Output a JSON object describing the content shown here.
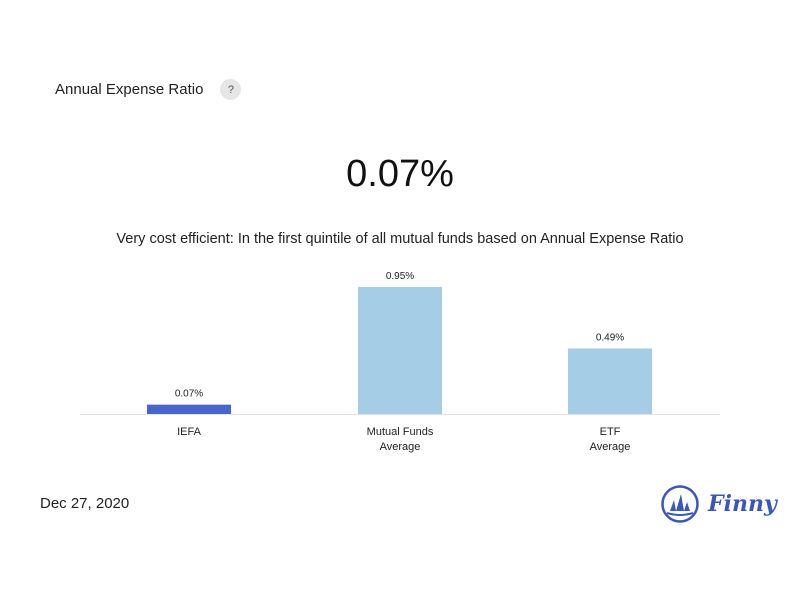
{
  "header": {
    "title": "Annual Expense Ratio",
    "help_label": "?"
  },
  "value": "0.07%",
  "subtitle": "Very cost efficient: In the first quintile of all mutual funds based on Annual Expense Ratio",
  "chart_data": {
    "type": "bar",
    "categories": [
      [
        "IEFA"
      ],
      [
        "Mutual Funds",
        "Average"
      ],
      [
        "ETF",
        "Average"
      ]
    ],
    "values": [
      0.07,
      0.95,
      0.49
    ],
    "value_labels": [
      "0.07%",
      "0.95%",
      "0.49%"
    ],
    "colors": [
      "#4766c9",
      "#a6cde6",
      "#a6cde6"
    ],
    "ylim": [
      0,
      0.95
    ],
    "title": "",
    "xlabel": "",
    "ylabel": ""
  },
  "footer": {
    "date": "Dec 27, 2020",
    "brand": "Finny",
    "brand_color": "#3b57b8"
  }
}
